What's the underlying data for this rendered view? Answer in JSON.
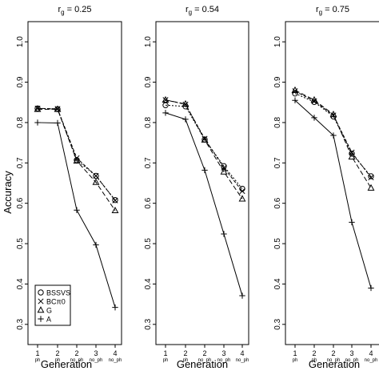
{
  "ylabel": "Accuracy",
  "xlabel": "Generation",
  "legend": [
    {
      "name": "BSSVS",
      "marker": "circle"
    },
    {
      "name": "BCπ0",
      "marker": "cross"
    },
    {
      "name": "G",
      "marker": "triangle"
    },
    {
      "name": "A",
      "marker": "plus"
    }
  ],
  "chart_data": [
    {
      "type": "line",
      "title": "r",
      "title_sub": "g",
      "title_value": " = 0.25",
      "categories": [
        "1",
        "2",
        "2",
        "3",
        "4"
      ],
      "categories_sub": [
        "ph",
        "ph",
        "no_ph",
        "no_ph",
        "no_ph"
      ],
      "ylim": [
        0.25,
        1.05
      ],
      "yticks": [
        0.3,
        0.4,
        0.5,
        0.6,
        0.7,
        0.8,
        0.9,
        1.0
      ],
      "legend_position": "bottom-left",
      "series": [
        {
          "name": "BSSVS",
          "values": [
            0.835,
            0.833,
            0.707,
            0.668,
            0.608
          ]
        },
        {
          "name": "BCπ0",
          "values": [
            0.835,
            0.834,
            0.712,
            0.668,
            0.607
          ]
        },
        {
          "name": "G",
          "values": [
            0.833,
            0.833,
            0.705,
            0.652,
            0.582
          ]
        },
        {
          "name": "A",
          "values": [
            0.8,
            0.799,
            0.583,
            0.497,
            0.342
          ]
        }
      ]
    },
    {
      "type": "line",
      "title": "r",
      "title_sub": "g",
      "title_value": " = 0.54",
      "categories": [
        "1",
        "2",
        "2",
        "3",
        "4"
      ],
      "categories_sub": [
        "ph",
        "ph",
        "no_ph",
        "no_ph",
        "no_ph"
      ],
      "ylim": [
        0.25,
        1.05
      ],
      "yticks": [
        0.3,
        0.4,
        0.5,
        0.6,
        0.7,
        0.8,
        0.9,
        1.0
      ],
      "series": [
        {
          "name": "BSSVS",
          "values": [
            0.843,
            0.84,
            0.758,
            0.692,
            0.636
          ]
        },
        {
          "name": "BCπ0",
          "values": [
            0.856,
            0.845,
            0.76,
            0.688,
            0.63
          ]
        },
        {
          "name": "G",
          "values": [
            0.856,
            0.846,
            0.757,
            0.678,
            0.611
          ]
        },
        {
          "name": "A",
          "values": [
            0.824,
            0.808,
            0.682,
            0.524,
            0.371
          ]
        }
      ]
    },
    {
      "type": "line",
      "title": "r",
      "title_sub": "g",
      "title_value": " = 0.75",
      "categories": [
        "1",
        "2",
        "2",
        "3",
        "4"
      ],
      "categories_sub": [
        "ph",
        "ph",
        "no_ph",
        "no_ph",
        "no_ph"
      ],
      "ylim": [
        0.25,
        1.05
      ],
      "yticks": [
        0.3,
        0.4,
        0.5,
        0.6,
        0.7,
        0.8,
        0.9,
        1.0
      ],
      "series": [
        {
          "name": "BSSVS",
          "values": [
            0.872,
            0.851,
            0.815,
            0.723,
            0.667
          ]
        },
        {
          "name": "BCπ0",
          "values": [
            0.878,
            0.853,
            0.818,
            0.726,
            0.664
          ]
        },
        {
          "name": "G",
          "values": [
            0.88,
            0.856,
            0.82,
            0.715,
            0.638
          ]
        },
        {
          "name": "A",
          "values": [
            0.855,
            0.812,
            0.768,
            0.553,
            0.39
          ]
        }
      ]
    }
  ]
}
